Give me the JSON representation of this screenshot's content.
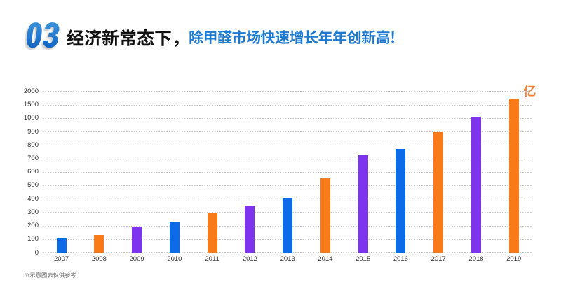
{
  "page": {
    "background": "#ffffff"
  },
  "header": {
    "section_number": "03",
    "section_number_color_top": "#3a92dc",
    "section_number_color_bottom": "#1365c2",
    "title_black": "经济新常态下，",
    "title_black_color": "#111111",
    "title_blue": "除甲醛市场快速增长年年创新高!",
    "title_blue_color": "#1d7ad0"
  },
  "chart_data": {
    "type": "bar",
    "title": "",
    "xlabel": "",
    "ylabel": "",
    "unit_label": "亿",
    "unit_label_color": "#f87b28",
    "categories": [
      "2007",
      "2008",
      "2009",
      "2010",
      "2011",
      "2012",
      "2013",
      "2014",
      "2015",
      "2016",
      "2017",
      "2018",
      "2019"
    ],
    "values": [
      105,
      135,
      195,
      225,
      300,
      350,
      410,
      555,
      725,
      775,
      900,
      1050,
      1750
    ],
    "bar_colors": [
      "#0e6be8",
      "#f97b17",
      "#7e33ee",
      "#0e6be8",
      "#f97b17",
      "#7e33ee",
      "#0e6be8",
      "#f97b17",
      "#7e33ee",
      "#0e6be8",
      "#f97b17",
      "#7e33ee",
      "#f97b17"
    ],
    "y_ticks": [
      0,
      100,
      200,
      300,
      400,
      500,
      600,
      700,
      800,
      900,
      1000,
      1500,
      2000
    ],
    "ylim": [
      0,
      2000
    ],
    "grid": "dotted",
    "grid_color": "#c9c9c9",
    "axis_label_color": "#333333",
    "legend": "none"
  },
  "footnote": {
    "text": "※示意图表仅供参考",
    "color": "#666666"
  }
}
